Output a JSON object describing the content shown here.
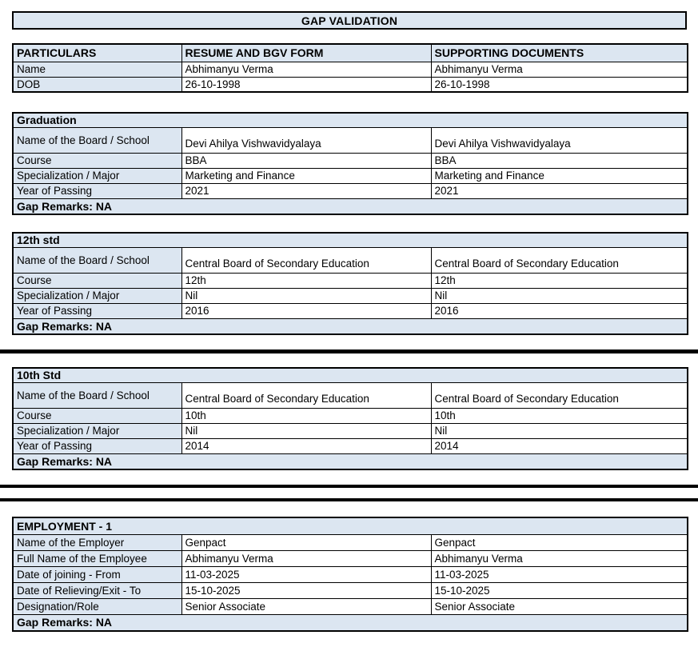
{
  "title": "GAP VALIDATION",
  "colors": {
    "header_bg": "#DCE6F1",
    "border": "#000000",
    "text": "#000000",
    "page_bg": "#FFFFFF"
  },
  "particulars_table": {
    "headers": [
      "PARTICULARS",
      "RESUME AND BGV FORM",
      "SUPPORTING DOCUMENTS"
    ],
    "rows": [
      {
        "label": "Name",
        "resume_value": "Abhimanyu Verma",
        "supporting_value": "Abhimanyu Verma"
      },
      {
        "label": "DOB",
        "resume_value": "26-10-1998",
        "supporting_value": "26-10-1998"
      }
    ]
  },
  "sections": [
    {
      "title": "Graduation",
      "rows": [
        {
          "label": "Name of the Board / School",
          "resume_value": "Devi Ahilya Vishwavidyalaya",
          "supporting_value": "Devi Ahilya Vishwavidyalaya"
        },
        {
          "label": "Course",
          "resume_value": "BBA",
          "supporting_value": "BBA"
        },
        {
          "label": "Specialization / Major",
          "resume_value": "Marketing and Finance",
          "supporting_value": "Marketing and Finance"
        },
        {
          "label": "Year of Passing",
          "resume_value": "2021",
          "supporting_value": "2021"
        }
      ],
      "gap_remarks": "Gap Remarks: NA"
    },
    {
      "title": "12th std",
      "rows": [
        {
          "label": "Name of the Board / School",
          "resume_value": "Central Board of Secondary Education",
          "supporting_value": "Central Board of Secondary Education"
        },
        {
          "label": "Course",
          "resume_value": "12th",
          "supporting_value": "12th"
        },
        {
          "label": "Specialization / Major",
          "resume_value": "Nil",
          "supporting_value": "Nil"
        },
        {
          "label": "Year of Passing",
          "resume_value": "2016",
          "supporting_value": "2016"
        }
      ],
      "gap_remarks": "Gap Remarks: NA"
    },
    {
      "title": "10th Std",
      "rows": [
        {
          "label": "Name of the Board / School",
          "resume_value": "Central Board of Secondary Education",
          "supporting_value": "Central Board of Secondary Education"
        },
        {
          "label": "Course",
          "resume_value": "10th",
          "supporting_value": "10th"
        },
        {
          "label": "Specialization / Major",
          "resume_value": "Nil",
          "supporting_value": "Nil"
        },
        {
          "label": "Year of Passing",
          "resume_value": "2014",
          "supporting_value": "2014"
        }
      ],
      "gap_remarks": "Gap Remarks: NA"
    },
    {
      "title": "EMPLOYMENT - 1",
      "rows": [
        {
          "label": "Name of the Employer",
          "resume_value": "Genpact",
          "supporting_value": "Genpact"
        },
        {
          "label": "Full Name of the Employee",
          "resume_value": "Abhimanyu Verma",
          "supporting_value": "Abhimanyu Verma"
        },
        {
          "label": "Date of joining - From",
          "resume_value": "11-03-2025",
          "supporting_value": "11-03-2025"
        },
        {
          "label": "Date of Relieving/Exit - To",
          "resume_value": "15-10-2025",
          "supporting_value": "15-10-2025"
        },
        {
          "label": "Designation/Role",
          "resume_value": "Senior Associate",
          "supporting_value": "Senior Associate"
        }
      ],
      "gap_remarks": "Gap Remarks: NA"
    }
  ]
}
